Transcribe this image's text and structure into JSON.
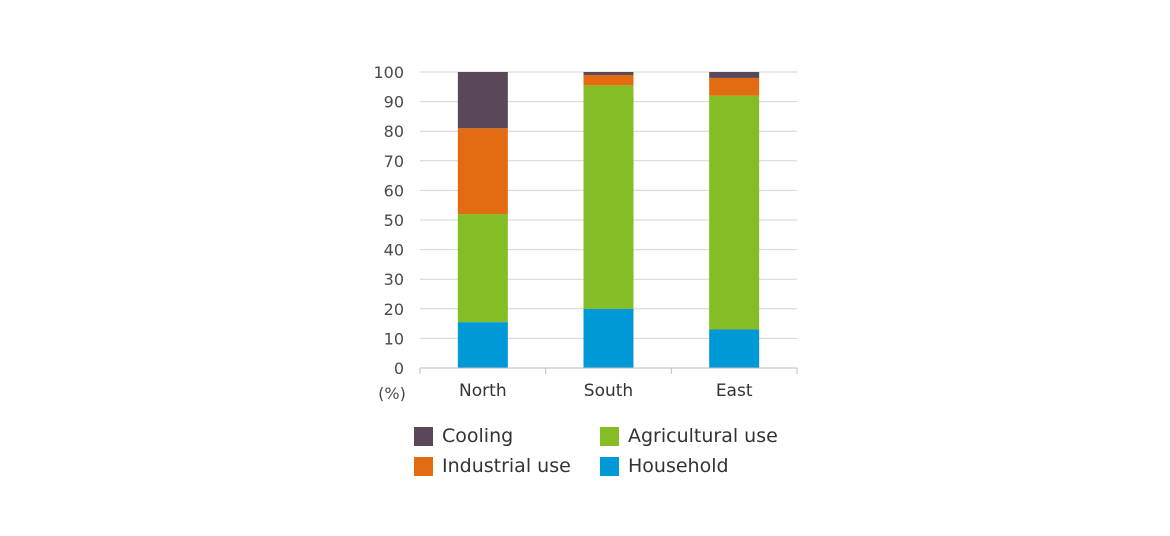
{
  "chart_data": {
    "type": "bar",
    "stacked": true,
    "categories": [
      "North",
      "South",
      "East"
    ],
    "unit_label": "(%)",
    "ylim": [
      0,
      100
    ],
    "yticks": [
      0,
      10,
      20,
      30,
      40,
      50,
      60,
      70,
      80,
      90,
      100
    ],
    "grid": true,
    "legend_position": "bottom",
    "series": [
      {
        "name": "Household",
        "color": "#0099d8",
        "values": [
          15.5,
          20,
          13
        ]
      },
      {
        "name": "Agricultural use",
        "color": "#84bd25",
        "values": [
          36.5,
          75.5,
          79
        ]
      },
      {
        "name": "Industrial use",
        "color": "#e36c12",
        "values": [
          29,
          3.5,
          6
        ]
      },
      {
        "name": "Cooling",
        "color": "#5a4858",
        "values": [
          19,
          1,
          2
        ]
      }
    ]
  },
  "legend": [
    {
      "label": "Cooling",
      "color": "#5a4858"
    },
    {
      "label": "Agricultural use",
      "color": "#84bd25"
    },
    {
      "label": "Industrial use",
      "color": "#e36c12"
    },
    {
      "label": "Household",
      "color": "#0099d8"
    }
  ]
}
